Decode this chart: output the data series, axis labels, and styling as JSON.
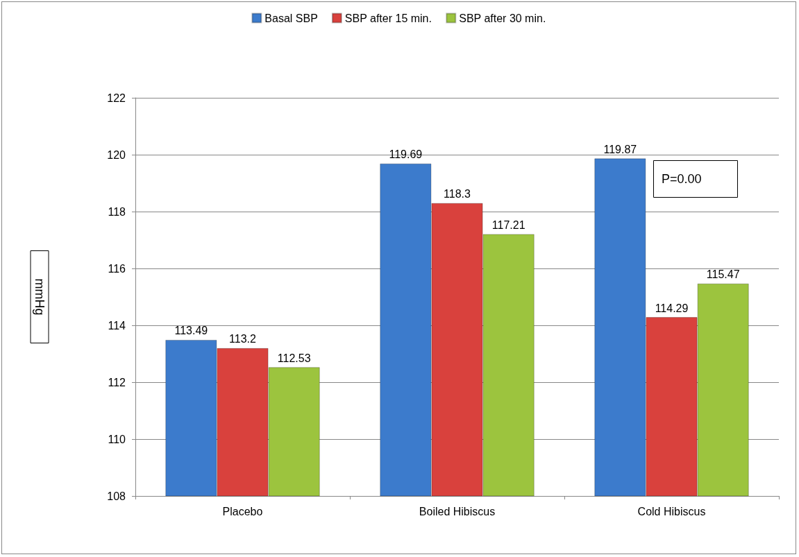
{
  "chart_data": {
    "type": "bar",
    "ylabel": "mmHg",
    "annotations": [
      "P=0.00"
    ],
    "categories": [
      "Placebo",
      "Boiled Hibiscus",
      "Cold Hibiscus"
    ],
    "series": [
      {
        "name": "Basal SBP",
        "color": "#3c7bcc",
        "values": [
          113.49,
          119.69,
          119.87
        ]
      },
      {
        "name": "SBP after 15 min.",
        "color": "#d9413d",
        "values": [
          113.2,
          118.3,
          114.29
        ]
      },
      {
        "name": "SBP after 30 min.",
        "color": "#9cc43e",
        "values": [
          112.53,
          117.21,
          115.47
        ]
      }
    ],
    "ylim": [
      108,
      122
    ],
    "yticks": [
      108,
      110,
      112,
      114,
      116,
      118,
      120,
      122
    ],
    "grid": "y",
    "legend": "top",
    "data_labels": true
  }
}
